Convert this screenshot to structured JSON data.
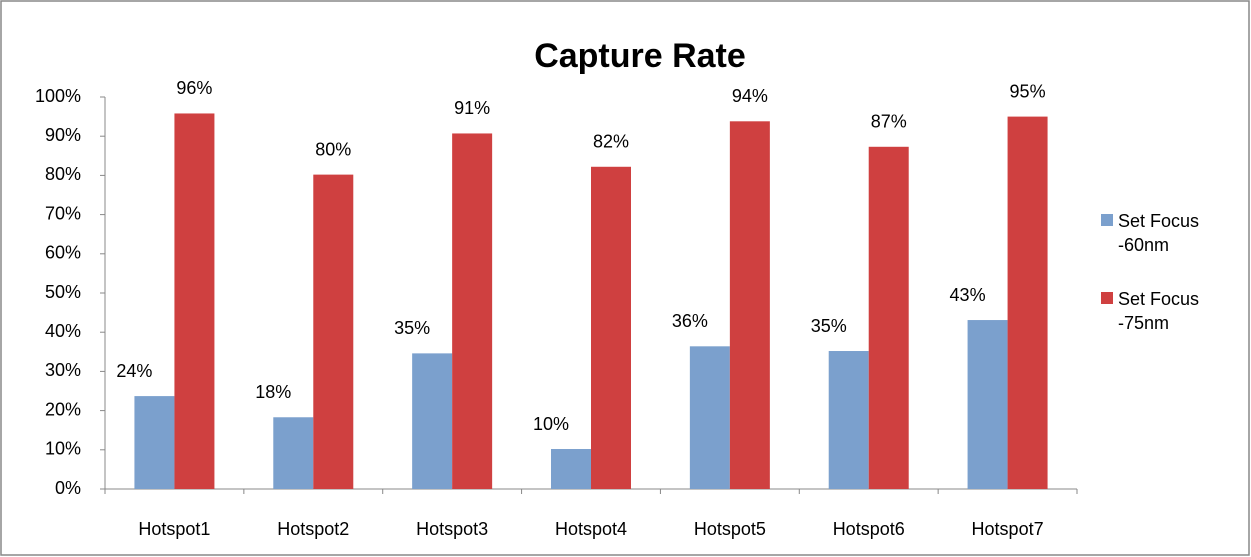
{
  "chart_data": {
    "type": "bar",
    "title": "Capture Rate",
    "categories": [
      "Hotspot1",
      "Hotspot2",
      "Hotspot3",
      "Hotspot4",
      "Hotspot5",
      "Hotspot6",
      "Hotspot7"
    ],
    "series": [
      {
        "name": "Set Focus -60nm",
        "color": "#7ba0cd",
        "values": [
          23.7,
          18.3,
          34.6,
          10.2,
          36.4,
          35.2,
          43.1
        ],
        "value_labels": [
          "24%",
          "18%",
          "35%",
          "10%",
          "36%",
          "35%",
          "43%"
        ]
      },
      {
        "name": "Set Focus -75nm",
        "color": "#cf4040",
        "values": [
          95.8,
          80.2,
          90.7,
          82.2,
          93.8,
          87.3,
          95.0
        ],
        "value_labels": [
          "96%",
          "80%",
          "91%",
          "82%",
          "94%",
          "87%",
          "95%"
        ]
      }
    ],
    "ylim": [
      0,
      100
    ],
    "yticks": [
      {
        "value": 0,
        "label": "0%"
      },
      {
        "value": 10,
        "label": "10%"
      },
      {
        "value": 20,
        "label": "20%"
      },
      {
        "value": 30,
        "label": "30%"
      },
      {
        "value": 40,
        "label": "40%"
      },
      {
        "value": 50,
        "label": "50%"
      },
      {
        "value": 60,
        "label": "60%"
      },
      {
        "value": 70,
        "label": "70%"
      },
      {
        "value": 80,
        "label": "80%"
      },
      {
        "value": 90,
        "label": "90%"
      },
      {
        "value": 100,
        "label": "100%"
      }
    ],
    "legend": "right"
  }
}
